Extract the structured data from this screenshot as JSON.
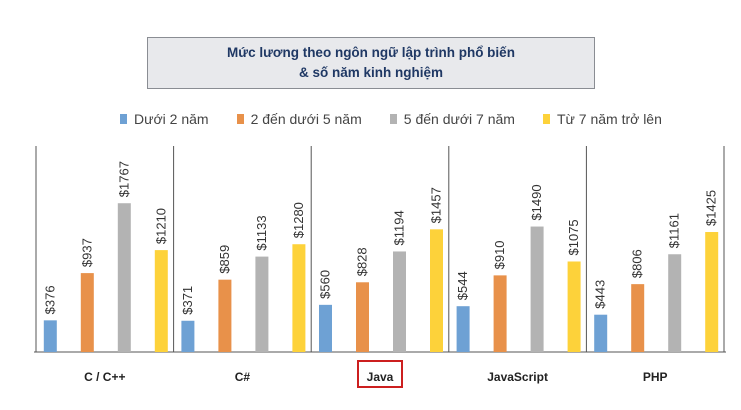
{
  "title": {
    "line1": "Mức lương theo ngôn ngữ lập trình phổ biến",
    "line2": "& số năm kinh nghiệm"
  },
  "highlighted_category": "Java",
  "colors": {
    "series1": "#6ea1d4",
    "series2": "#e8914a",
    "series3": "#b3b3b3",
    "series4": "#fdd23a",
    "highlight_border": "#cc1f1f",
    "axis": "#555555"
  },
  "chart_data": {
    "type": "bar",
    "title": "Mức lương theo ngôn ngữ lập trình phổ biến & số năm kinh nghiệm",
    "categories": [
      "C / C++",
      "C#",
      "Java",
      "JavaScript",
      "PHP"
    ],
    "series": [
      {
        "name": "Dưới 2 năm",
        "values": [
          376,
          371,
          560,
          544,
          443
        ],
        "labels": [
          "$376",
          "$371",
          "$560",
          "$544",
          "$443"
        ]
      },
      {
        "name": "2 đến dưới 5 năm",
        "values": [
          937,
          859,
          828,
          910,
          806
        ],
        "labels": [
          "$937",
          "$859",
          "$828",
          "$910",
          "$806"
        ]
      },
      {
        "name": "5 đến dưới 7 năm",
        "values": [
          1767,
          1133,
          1194,
          1490,
          1161
        ],
        "labels": [
          "$1767",
          "$1133",
          "$1194",
          "$1490",
          "$1161"
        ]
      },
      {
        "name": "Từ 7 năm trở lên",
        "values": [
          1210,
          1280,
          1457,
          1075,
          1425
        ],
        "labels": [
          "$1210",
          "$1280",
          "$1457",
          "$1075",
          "$1425"
        ]
      }
    ],
    "ylim": [
      0,
      2000
    ],
    "legend": "top",
    "grid": false
  }
}
